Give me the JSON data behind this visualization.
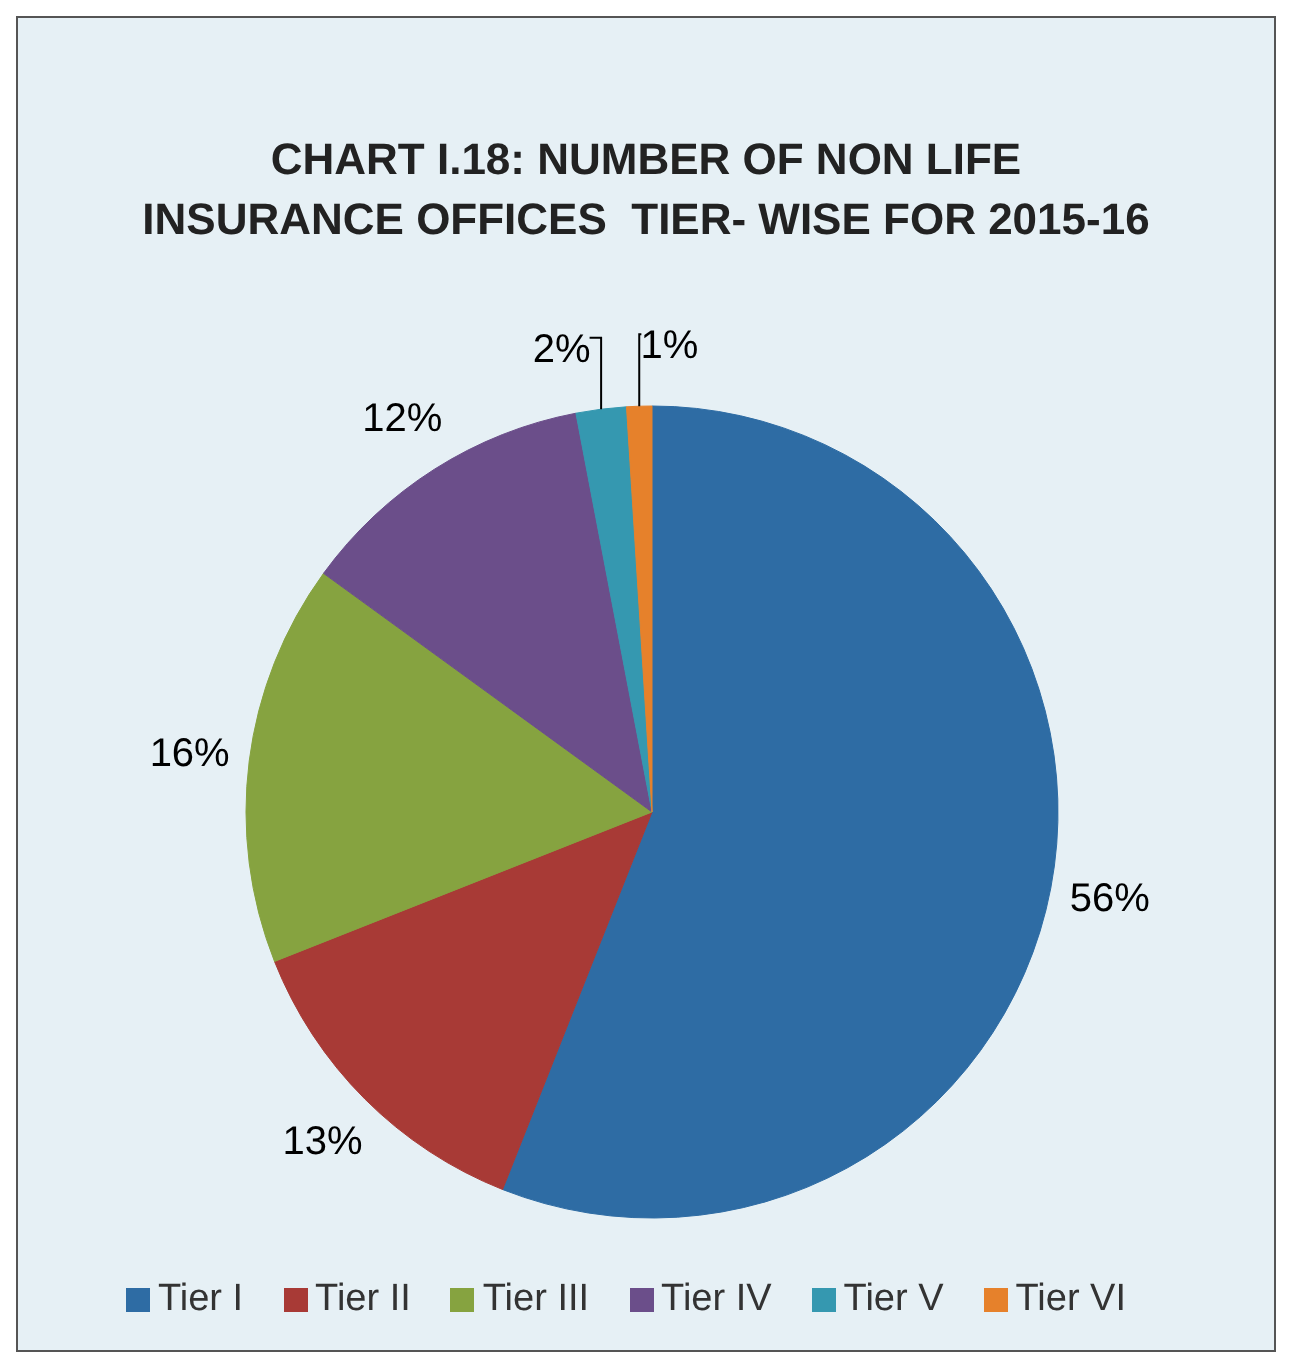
{
  "chart_data": {
    "type": "pie",
    "title": "CHART I.18: NUMBER OF NON LIFE INSURANCE OFFICES  TIER- WISE FOR 2015-16",
    "categories": [
      "Tier I",
      "Tier II",
      "Tier III",
      "Tier IV",
      "Tier V",
      "Tier VI"
    ],
    "values": [
      56,
      13,
      16,
      12,
      2,
      1
    ],
    "colors": [
      "#2e6ca4",
      "#a83a36",
      "#86a340",
      "#6b4e8a",
      "#3598b0",
      "#e6812b"
    ],
    "value_labels": [
      "56%",
      "13%",
      "16%",
      "12%",
      "2%",
      "1%"
    ],
    "legend": "bottom"
  }
}
